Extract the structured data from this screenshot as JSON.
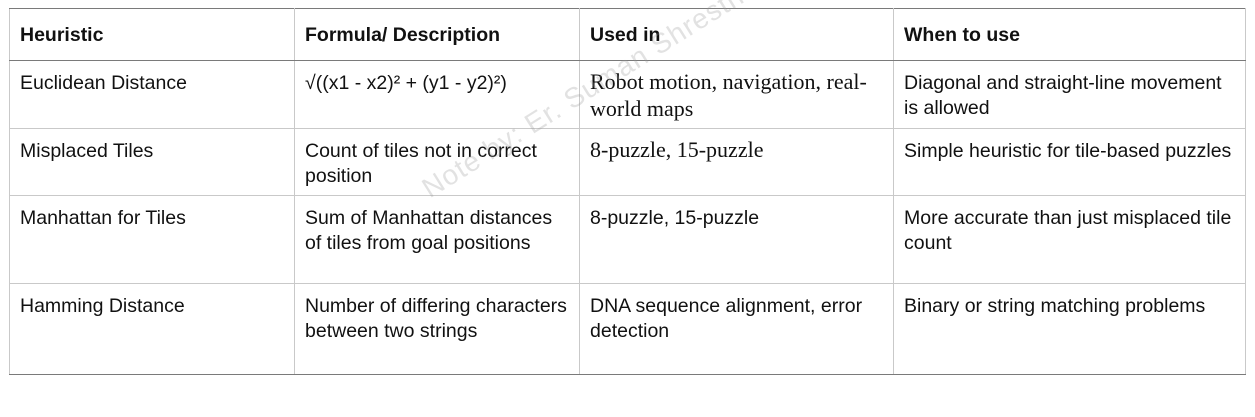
{
  "headers": [
    "Heuristic",
    "Formula/ Description",
    "Used in",
    "When to use"
  ],
  "rows": [
    {
      "heuristic": "Euclidean Distance",
      "formula": "√((x1 - x2)² + (y1 - y2)²)",
      "used_in": "Robot motion, navigation, real-world maps",
      "when": "Diagonal and straight-line movement is allowed"
    },
    {
      "heuristic": "Misplaced Tiles",
      "formula": "Count of tiles not in correct position",
      "used_in": "8-puzzle, 15-puzzle",
      "when": "Simple heuristic for tile-based puzzles"
    },
    {
      "heuristic": "Manhattan for Tiles",
      "formula": "Sum of Manhattan distances of tiles from goal positions",
      "used_in": "8-puzzle, 15-puzzle",
      "when": "More accurate than just misplaced tile count"
    },
    {
      "heuristic": "Hamming Distance",
      "formula": "Number of differing characters between two strings",
      "used_in": "DNA sequence alignment, error detection",
      "when": "Binary or string matching problems"
    }
  ],
  "watermark": "Note by: Er. Suman Shrestha"
}
